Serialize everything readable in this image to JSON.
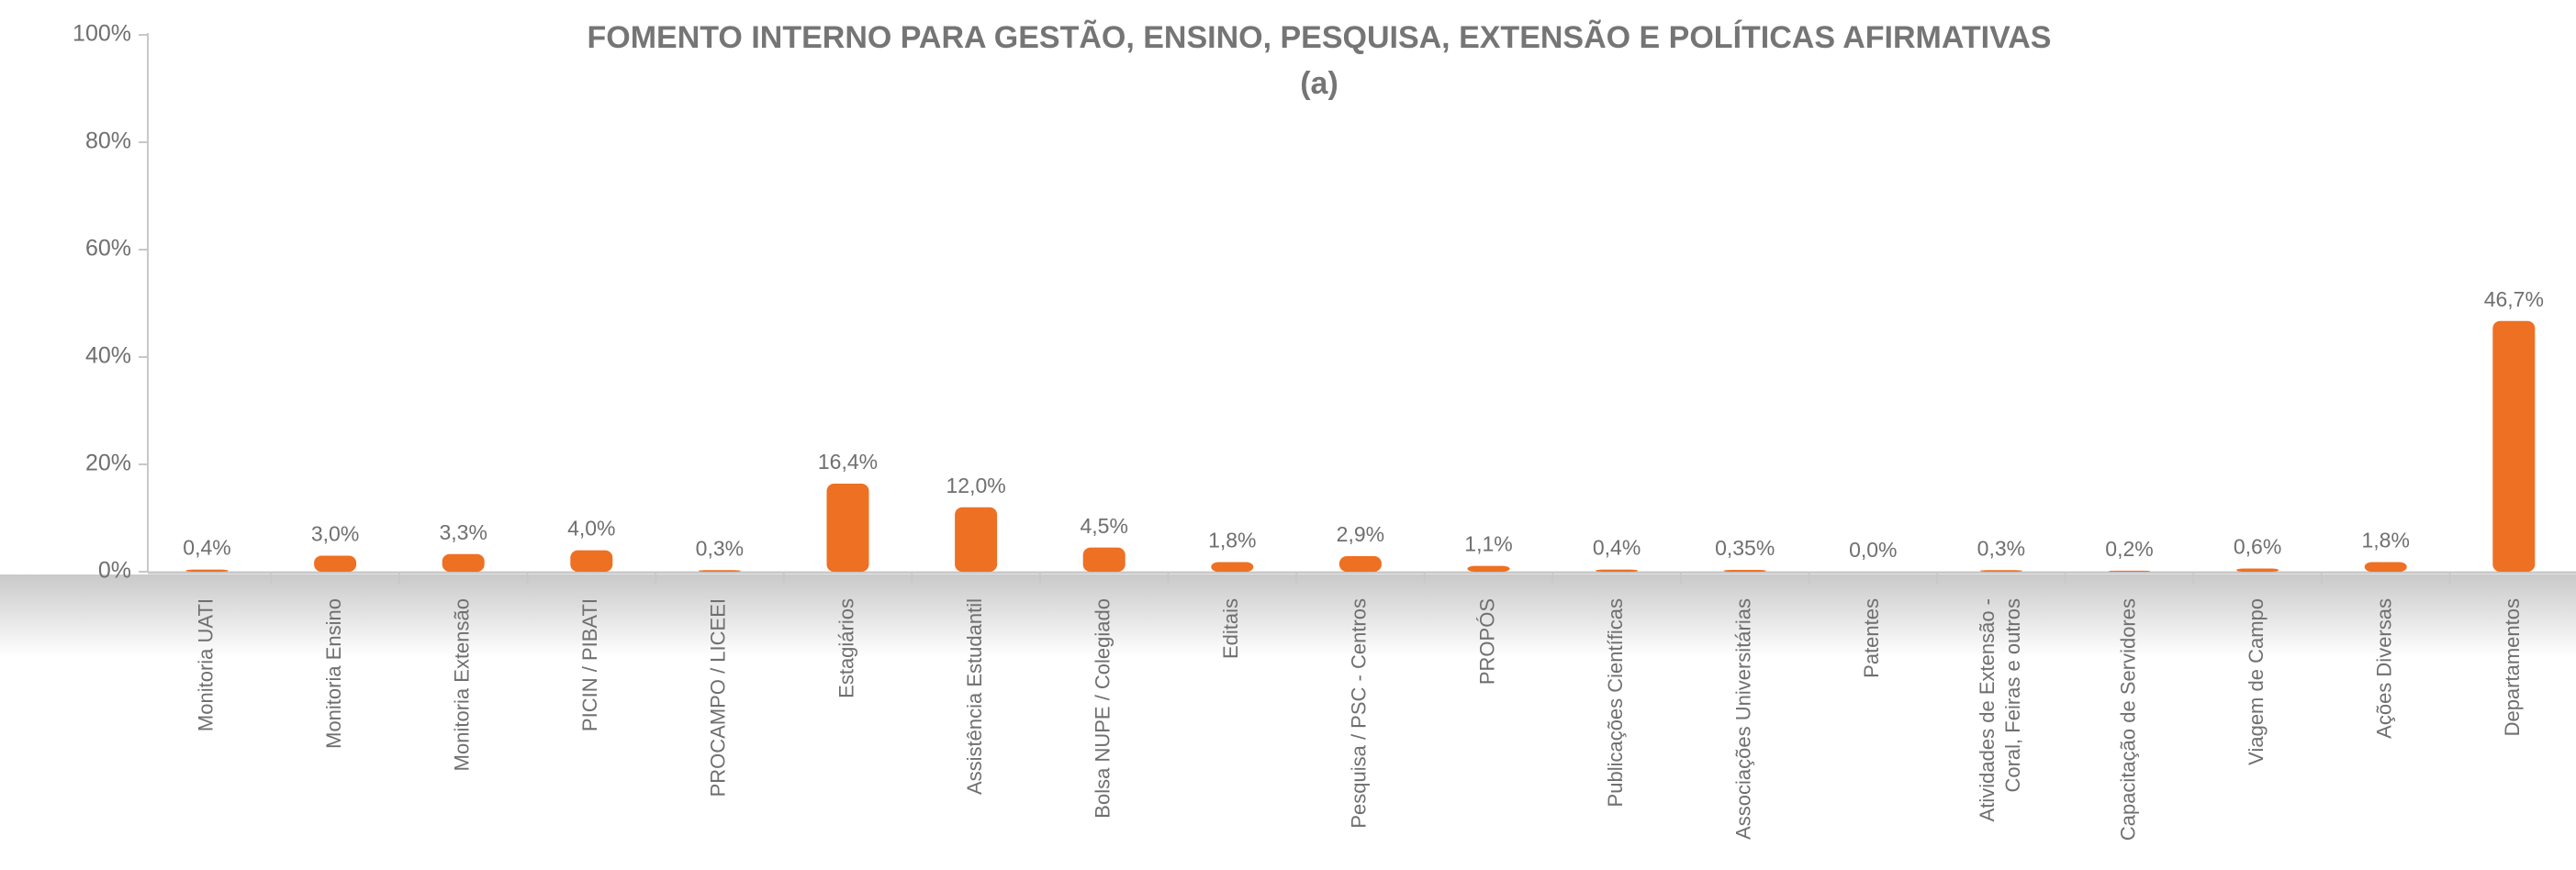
{
  "chart_data": {
    "type": "bar",
    "title": "FOMENTO INTERNO PARA GESTÃO, ENSINO, PESQUISA, EXTENSÃO E POLÍTICAS AFIRMATIVAS",
    "subtitle": "(a)",
    "categories": [
      "Monitoria UATI",
      "Monitoria Ensino",
      "Monitoria Extensão",
      "PICIN / PIBATI",
      "PROCAMPO / LICEEI",
      "Estagiários",
      "Assistência Estudantil",
      "Bolsa NUPE / Colegiado",
      "Editais",
      "Pesquisa / PSC - Centros",
      "PROPÓS",
      "Publicações Científicas",
      "Associações Universitárias",
      "Patentes",
      "Atividades de Extensão -\nCoral, Feiras e outros",
      "Capacitação de Servidores",
      "Viagem de Campo",
      "Ações Diversas",
      "Departamentos"
    ],
    "values": [
      0.4,
      3.0,
      3.3,
      4.0,
      0.3,
      16.4,
      12.0,
      4.5,
      1.8,
      2.9,
      1.1,
      0.4,
      0.35,
      0.0,
      0.3,
      0.2,
      0.6,
      1.8,
      46.7
    ],
    "value_labels": [
      "0,4%",
      "3,0%",
      "3,3%",
      "4,0%",
      "0,3%",
      "16,4%",
      "12,0%",
      "4,5%",
      "1,8%",
      "2,9%",
      "1,1%",
      "0,4%",
      "0,35%",
      "0,0%",
      "0,3%",
      "0,2%",
      "0,6%",
      "1,8%",
      "46,7%"
    ],
    "color": "#ee7023",
    "ylim": [
      0,
      100
    ],
    "yticks": [
      {
        "value": 0,
        "label": "0%"
      },
      {
        "value": 20,
        "label": "20%"
      },
      {
        "value": 40,
        "label": "40%"
      },
      {
        "value": 60,
        "label": "60%"
      },
      {
        "value": 80,
        "label": "80%"
      },
      {
        "value": 100,
        "label": "100%"
      }
    ]
  }
}
